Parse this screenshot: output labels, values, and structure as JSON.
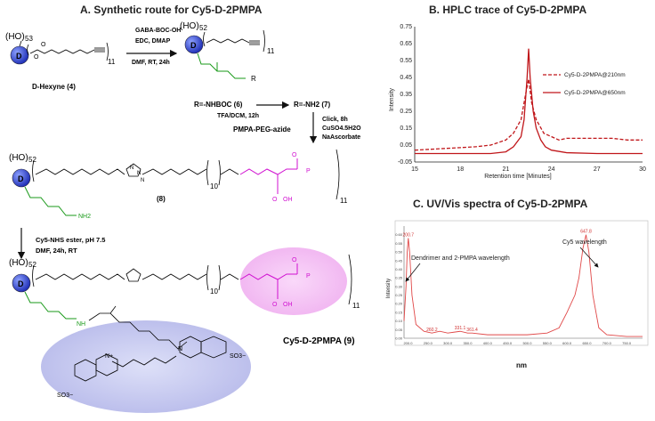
{
  "panel_a": {
    "title": "A. Synthetic route for Cy5-D-2PMPA",
    "reagents_1": [
      "GABA-BOC-OH",
      "EDC, DMAP",
      "DMF, RT, 24h"
    ],
    "start_label": "D-Hexyne (4)",
    "start_ho_count": "53",
    "mid_ho_count": "52",
    "repeat_n": "11",
    "core_label": "D",
    "r_group": "R",
    "r_nhboc": "R=-NHBOC (6)",
    "r_nh2": "R=-NH2 (7)",
    "deprotect": "TFA/DCM, 12h",
    "click_reagents": [
      "Click, 8h",
      "CuSO4.5H2O",
      "NaAscorbate"
    ],
    "pmpa_peg": "PMPA-PEG-azide",
    "compound_8": "(8)",
    "peg_n": "10",
    "cy5_reagents": [
      "Cy5-NHS ester, pH 7.5",
      "DMF, 24h, RT"
    ],
    "product_label": "Cy5-D-2PMPA (9)",
    "amide_nh": "NH",
    "amine_nh2": "NH2",
    "acid_oh": "OH",
    "phosphonate_p": "P",
    "sulfonate": "SO3−",
    "n_plus": "N+",
    "n": "N"
  },
  "panel_b": {
    "title": "B. HPLC trace of Cy5-D-2PMPA",
    "chart_data": {
      "type": "line",
      "xlabel": "Retention time [Minutes]",
      "ylabel": "Intensity",
      "xlim": [
        15,
        30
      ],
      "ylim": [
        -0.05,
        0.75
      ],
      "xticks": [
        "15",
        "18",
        "21",
        "24",
        "27",
        "30"
      ],
      "yticks": [
        "-0.05",
        "0.05",
        "0.15",
        "0.25",
        "0.35",
        "0.45",
        "0.55",
        "0.65",
        "0.75"
      ],
      "series": [
        {
          "name": "Cy5-D-2PMPA@210nm",
          "style": "dashed",
          "x": [
            15,
            16,
            17,
            18,
            19,
            20,
            21,
            21.5,
            22,
            22.3,
            22.5,
            22.7,
            23,
            23.5,
            24,
            24.5,
            25,
            26,
            27,
            28,
            29,
            30
          ],
          "y": [
            0.02,
            0.025,
            0.03,
            0.035,
            0.04,
            0.05,
            0.08,
            0.12,
            0.2,
            0.35,
            0.44,
            0.3,
            0.2,
            0.12,
            0.1,
            0.08,
            0.09,
            0.09,
            0.09,
            0.09,
            0.08,
            0.08
          ]
        },
        {
          "name": "Cy5-D-2PMPA@650nm",
          "style": "solid",
          "x": [
            15,
            18,
            20,
            21,
            21.5,
            22,
            22.2,
            22.4,
            22.5,
            22.6,
            22.8,
            23,
            23.3,
            23.6,
            24,
            25,
            27,
            30
          ],
          "y": [
            0.0,
            0.0,
            0.0,
            0.01,
            0.04,
            0.1,
            0.2,
            0.45,
            0.62,
            0.45,
            0.25,
            0.15,
            0.08,
            0.04,
            0.02,
            0.005,
            0.0,
            0.0
          ]
        }
      ]
    }
  },
  "panel_c": {
    "title": "C. UV/Vis spectra of Cy5-D-2PMPA",
    "chart_data": {
      "type": "line",
      "xlabel": "nm",
      "ylabel": "Intensity",
      "xlim": [
        190,
        790
      ],
      "ylim": [
        0,
        0.65
      ],
      "xticks": [
        "200.0",
        "250.0",
        "300.0",
        "350.0",
        "400.0",
        "450.0",
        "500.0",
        "550.0",
        "600.0",
        "650.0",
        "700.0",
        "750.0"
      ],
      "yticks": [
        "0.00",
        "0.05",
        "0.10",
        "0.15",
        "0.20",
        "0.25",
        "0.30",
        "0.35",
        "0.40",
        "0.45",
        "0.50",
        "0.55",
        "0.60"
      ],
      "series": [
        {
          "name": "Cy5-D-2PMPA",
          "x": [
            190,
            195,
            198,
            200.7,
            204,
            210,
            220,
            240,
            260,
            280,
            300,
            331.1,
            350,
            361.4,
            400,
            450,
            500,
            550,
            580,
            600,
            610,
            620,
            630,
            640,
            647.8,
            655,
            665,
            680,
            700,
            750,
            790
          ],
          "y": [
            0.1,
            0.3,
            0.5,
            0.58,
            0.5,
            0.25,
            0.08,
            0.04,
            0.03,
            0.04,
            0.03,
            0.04,
            0.03,
            0.03,
            0.02,
            0.02,
            0.02,
            0.03,
            0.06,
            0.15,
            0.2,
            0.25,
            0.35,
            0.52,
            0.6,
            0.5,
            0.25,
            0.06,
            0.02,
            0.01,
            0.01
          ]
        }
      ],
      "peak_labels": [
        "200.7",
        "260.2",
        "331.1",
        "361.4",
        "647.8"
      ],
      "annotations": [
        "Dendrimer and 2-PMPA wavelength",
        "Cy5 wavelength"
      ]
    }
  }
}
